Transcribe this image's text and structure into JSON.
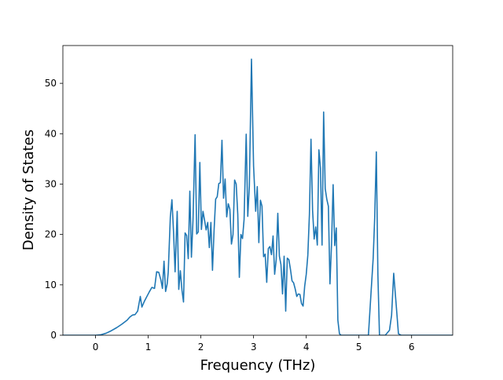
{
  "chart_data": {
    "type": "line",
    "title": "",
    "xlabel": "Frequency (THz)",
    "ylabel": "Density of States",
    "xlim": [
      -0.62,
      6.78
    ],
    "ylim": [
      0,
      57.5
    ],
    "xticks": [
      0,
      1,
      2,
      3,
      4,
      5,
      6
    ],
    "yticks": [
      0,
      10,
      20,
      30,
      40,
      50
    ],
    "grid": false,
    "legend": "none",
    "series": [
      {
        "color": "#1f77b4",
        "points": [
          [
            -0.62,
            0
          ],
          [
            -0.3,
            0
          ],
          [
            0.0,
            0
          ],
          [
            0.1,
            0.1
          ],
          [
            0.2,
            0.4
          ],
          [
            0.3,
            0.9
          ],
          [
            0.4,
            1.5
          ],
          [
            0.5,
            2.2
          ],
          [
            0.6,
            3.0
          ],
          [
            0.65,
            3.6
          ],
          [
            0.7,
            4.0
          ],
          [
            0.75,
            4.1
          ],
          [
            0.8,
            4.8
          ],
          [
            0.85,
            7.7
          ],
          [
            0.88,
            5.6
          ],
          [
            0.93,
            6.8
          ],
          [
            0.98,
            7.8
          ],
          [
            1.02,
            8.6
          ],
          [
            1.07,
            9.5
          ],
          [
            1.12,
            9.3
          ],
          [
            1.16,
            12.6
          ],
          [
            1.2,
            12.5
          ],
          [
            1.24,
            11.0
          ],
          [
            1.27,
            9.3
          ],
          [
            1.3,
            14.7
          ],
          [
            1.33,
            8.7
          ],
          [
            1.36,
            10.2
          ],
          [
            1.38,
            12.5
          ],
          [
            1.42,
            23.5
          ],
          [
            1.45,
            26.9
          ],
          [
            1.48,
            20.7
          ],
          [
            1.51,
            12.6
          ],
          [
            1.55,
            24.6
          ],
          [
            1.58,
            9.1
          ],
          [
            1.61,
            12.8
          ],
          [
            1.64,
            9.0
          ],
          [
            1.67,
            6.6
          ],
          [
            1.7,
            20.3
          ],
          [
            1.73,
            19.8
          ],
          [
            1.76,
            15.2
          ],
          [
            1.79,
            28.6
          ],
          [
            1.82,
            15.5
          ],
          [
            1.85,
            22.8
          ],
          [
            1.89,
            39.8
          ],
          [
            1.92,
            20.1
          ],
          [
            1.95,
            20.5
          ],
          [
            1.98,
            34.3
          ],
          [
            2.01,
            21.0
          ],
          [
            2.04,
            24.6
          ],
          [
            2.07,
            22.8
          ],
          [
            2.1,
            20.9
          ],
          [
            2.13,
            22.4
          ],
          [
            2.16,
            17.4
          ],
          [
            2.19,
            22.4
          ],
          [
            2.22,
            12.9
          ],
          [
            2.25,
            20.8
          ],
          [
            2.28,
            27.0
          ],
          [
            2.31,
            27.5
          ],
          [
            2.34,
            30.1
          ],
          [
            2.37,
            30.3
          ],
          [
            2.4,
            38.7
          ],
          [
            2.43,
            27.2
          ],
          [
            2.46,
            31.0
          ],
          [
            2.49,
            23.5
          ],
          [
            2.52,
            26.1
          ],
          [
            2.55,
            25.0
          ],
          [
            2.58,
            18.1
          ],
          [
            2.61,
            20.0
          ],
          [
            2.64,
            30.8
          ],
          [
            2.67,
            30.0
          ],
          [
            2.7,
            24.0
          ],
          [
            2.73,
            11.5
          ],
          [
            2.76,
            20.0
          ],
          [
            2.79,
            19.2
          ],
          [
            2.82,
            23.0
          ],
          [
            2.86,
            39.9
          ],
          [
            2.89,
            23.6
          ],
          [
            2.92,
            29.6
          ],
          [
            2.96,
            54.8
          ],
          [
            3.0,
            33.6
          ],
          [
            3.04,
            24.6
          ],
          [
            3.07,
            29.5
          ],
          [
            3.1,
            18.4
          ],
          [
            3.13,
            26.8
          ],
          [
            3.16,
            25.6
          ],
          [
            3.19,
            15.6
          ],
          [
            3.22,
            16.1
          ],
          [
            3.25,
            10.5
          ],
          [
            3.28,
            17.2
          ],
          [
            3.31,
            17.6
          ],
          [
            3.34,
            16.0
          ],
          [
            3.37,
            19.7
          ],
          [
            3.4,
            12.1
          ],
          [
            3.43,
            15.0
          ],
          [
            3.46,
            24.2
          ],
          [
            3.49,
            15.7
          ],
          [
            3.52,
            14.0
          ],
          [
            3.55,
            8.2
          ],
          [
            3.58,
            15.7
          ],
          [
            3.61,
            4.8
          ],
          [
            3.64,
            15.3
          ],
          [
            3.67,
            15.0
          ],
          [
            3.7,
            13.1
          ],
          [
            3.73,
            10.8
          ],
          [
            3.76,
            10.4
          ],
          [
            3.79,
            9.2
          ],
          [
            3.82,
            7.7
          ],
          [
            3.85,
            8.2
          ],
          [
            3.88,
            8.1
          ],
          [
            3.91,
            6.3
          ],
          [
            3.94,
            5.8
          ],
          [
            3.97,
            9.7
          ],
          [
            4.0,
            12.1
          ],
          [
            4.03,
            15.9
          ],
          [
            4.06,
            24.0
          ],
          [
            4.09,
            38.9
          ],
          [
            4.12,
            24.8
          ],
          [
            4.15,
            19.1
          ],
          [
            4.18,
            21.5
          ],
          [
            4.21,
            17.9
          ],
          [
            4.24,
            36.8
          ],
          [
            4.27,
            33.2
          ],
          [
            4.3,
            17.9
          ],
          [
            4.33,
            44.3
          ],
          [
            4.36,
            29.1
          ],
          [
            4.39,
            27.0
          ],
          [
            4.42,
            25.6
          ],
          [
            4.45,
            10.2
          ],
          [
            4.48,
            18.1
          ],
          [
            4.51,
            29.9
          ],
          [
            4.54,
            17.8
          ],
          [
            4.57,
            21.3
          ],
          [
            4.6,
            3.0
          ],
          [
            4.63,
            0.3
          ],
          [
            4.66,
            0
          ],
          [
            4.9,
            0
          ],
          [
            5.18,
            0
          ],
          [
            5.23,
            8.5
          ],
          [
            5.27,
            15.2
          ],
          [
            5.3,
            23.5
          ],
          [
            5.33,
            36.4
          ],
          [
            5.36,
            12.0
          ],
          [
            5.39,
            0
          ],
          [
            5.5,
            0
          ],
          [
            5.58,
            1.0
          ],
          [
            5.62,
            4.0
          ],
          [
            5.66,
            12.3
          ],
          [
            5.7,
            7.0
          ],
          [
            5.75,
            0.3
          ],
          [
            5.8,
            0
          ],
          [
            6.0,
            0
          ],
          [
            6.78,
            0
          ]
        ]
      }
    ]
  }
}
